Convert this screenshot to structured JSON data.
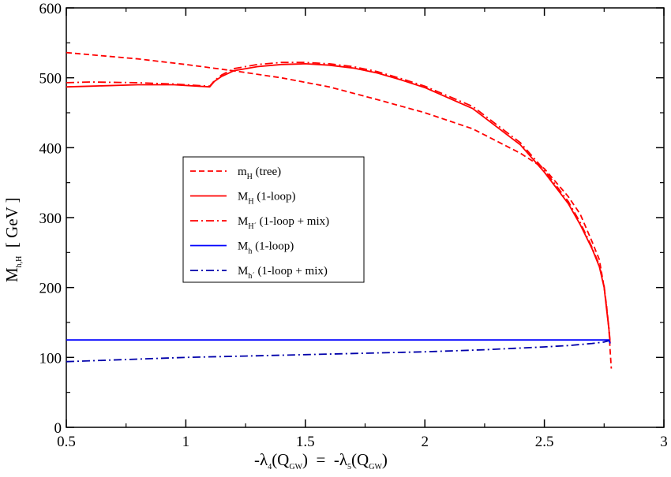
{
  "chart_data": {
    "type": "line",
    "xlabel": {
      "main": "-λ",
      "sub1": "4",
      "mid1": "(Q",
      "sub2": "GW",
      "mid2": ")  =  -λ",
      "sub3": "5",
      "mid3": "(Q",
      "sub4": "GW",
      "end": ")"
    },
    "ylabel": {
      "main": "M",
      "sub": "h,H",
      "unit": "  [ GeV ]"
    },
    "xlim": [
      0.5,
      3.0
    ],
    "ylim": [
      0,
      600
    ],
    "xticks": [
      "0.5",
      "1",
      "1.5",
      "2",
      "2.5",
      "3"
    ],
    "xtick_values": [
      0.5,
      1.0,
      1.5,
      2.0,
      2.5,
      3.0
    ],
    "yticks": [
      "0",
      "100",
      "200",
      "300",
      "400",
      "500",
      "600"
    ],
    "ytick_values": [
      0,
      100,
      200,
      300,
      400,
      500,
      600
    ],
    "grid": false,
    "legend_position": "center-left",
    "series": [
      {
        "key": "mH_tree",
        "color": "#ff0000",
        "dash": "dashed",
        "legend": {
          "main": "m",
          "sub": "H",
          "rest": "  (tree)"
        },
        "x": [
          0.5,
          0.6,
          0.8,
          1.0,
          1.2,
          1.4,
          1.6,
          1.8,
          2.0,
          2.2,
          2.4,
          2.5,
          2.6,
          2.65,
          2.7,
          2.73,
          2.75,
          2.76,
          2.77,
          2.775,
          2.78
        ],
        "y": [
          536,
          533,
          527,
          519,
          510,
          500,
          487,
          469,
          450,
          427,
          392,
          370,
          330,
          305,
          265,
          240,
          200,
          175,
          140,
          110,
          84
        ]
      },
      {
        "key": "MH_1loop",
        "color": "#ff0000",
        "dash": "solid",
        "legend": {
          "main": "M",
          "sub": "H",
          "rest": "  (1-loop)"
        },
        "x": [
          0.5,
          0.6,
          0.8,
          0.95,
          1.1,
          1.12,
          1.15,
          1.2,
          1.3,
          1.4,
          1.5,
          1.6,
          1.7,
          1.8,
          1.9,
          2.0,
          2.2,
          2.4,
          2.5,
          2.6,
          2.65,
          2.7,
          2.73,
          2.75,
          2.76,
          2.77,
          2.775
        ],
        "y": [
          487,
          488,
          490,
          490,
          487,
          495,
          502,
          510,
          516,
          519,
          520,
          518,
          514,
          507,
          497,
          486,
          456,
          404,
          365,
          320,
          290,
          255,
          230,
          200,
          170,
          140,
          120
        ]
      },
      {
        "key": "MH_1loop_mix",
        "color": "#ff0000",
        "dash": "dashdot",
        "legend": {
          "main": "M",
          "sub": "H´",
          "rest": " (1-loop + mix)"
        },
        "x": [
          0.5,
          0.6,
          0.8,
          0.95,
          1.1,
          1.12,
          1.15,
          1.2,
          1.3,
          1.4,
          1.5,
          1.6,
          1.7,
          1.8,
          1.9,
          2.0,
          2.2,
          2.4,
          2.5,
          2.6,
          2.65,
          2.7,
          2.73,
          2.75,
          2.76,
          2.77,
          2.775
        ],
        "y": [
          493,
          494,
          493,
          491,
          488,
          496,
          504,
          513,
          519,
          522,
          522,
          520,
          516,
          509,
          499,
          488,
          459,
          407,
          368,
          323,
          293,
          257,
          232,
          202,
          172,
          142,
          122
        ]
      },
      {
        "key": "Mh_1loop",
        "color": "#0000ff",
        "dash": "solid",
        "legend": {
          "main": "M",
          "sub": "h",
          "rest": "  (1-loop)"
        },
        "x": [
          0.5,
          1.0,
          1.5,
          2.0,
          2.5,
          2.7,
          2.77,
          2.775
        ],
        "y": [
          125,
          125,
          125,
          125,
          125,
          125,
          125,
          120
        ]
      },
      {
        "key": "Mh_1loop_mix",
        "color": "#0000aa",
        "dash": "dashdot",
        "legend": {
          "main": "M",
          "sub": "h´",
          "rest": " (1-loop + mix)"
        },
        "x": [
          0.5,
          0.75,
          1.0,
          1.25,
          1.5,
          1.75,
          2.0,
          2.25,
          2.5,
          2.6,
          2.7,
          2.75,
          2.77
        ],
        "y": [
          94,
          97,
          100,
          102,
          104,
          106,
          108,
          111,
          115,
          117,
          120,
          122,
          124
        ]
      }
    ]
  }
}
